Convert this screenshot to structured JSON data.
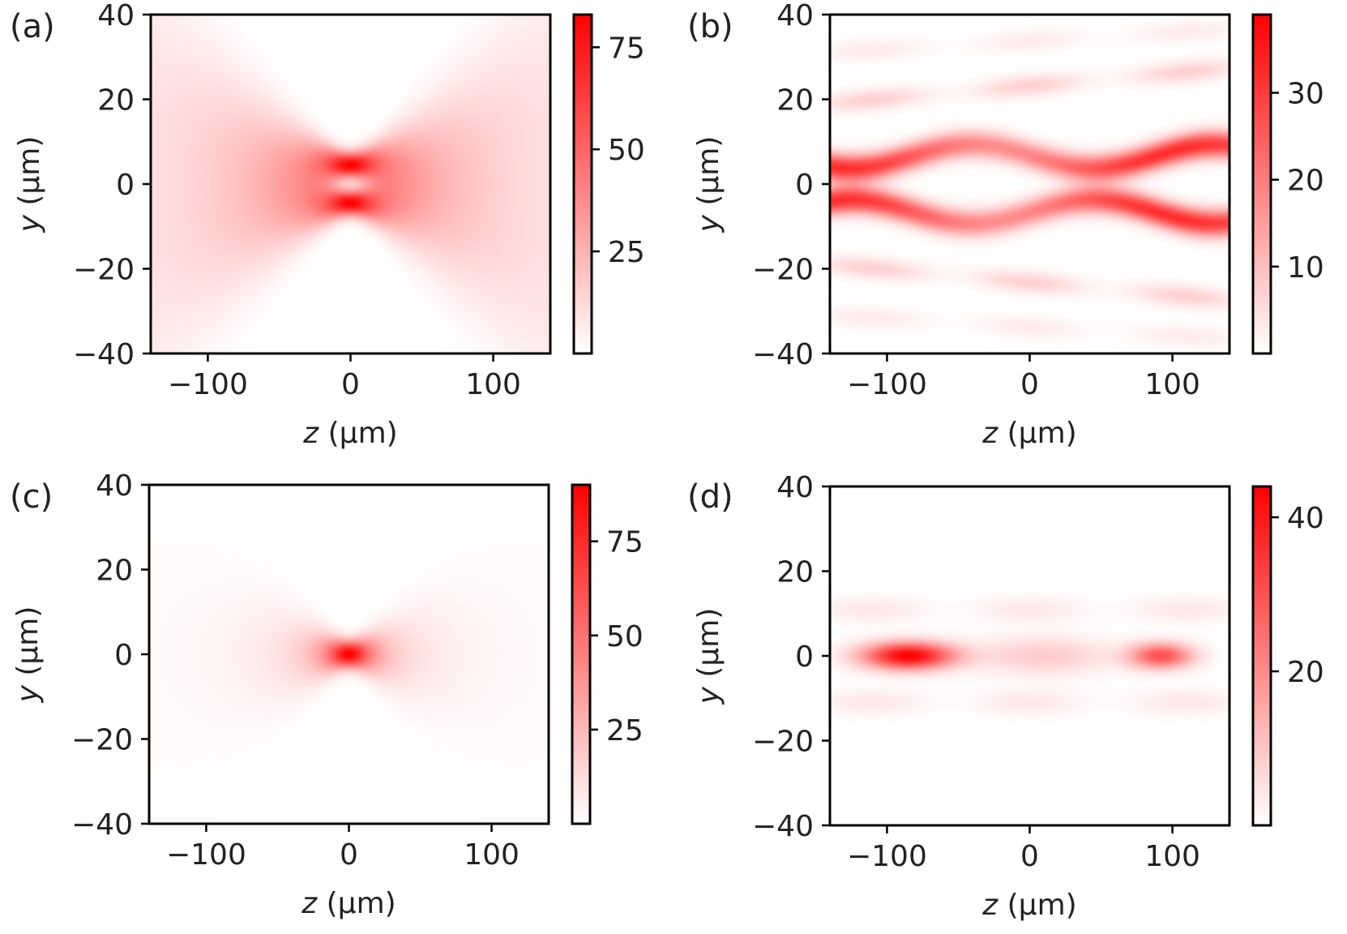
{
  "chart_data": [
    {
      "type": "heatmap",
      "panel": "(a)",
      "xlabel_var": "z",
      "xlabel_unit": " (μm)",
      "ylabel_var": "y",
      "ylabel_unit": " (μm)",
      "xlim": [
        -140,
        140
      ],
      "ylim": [
        -40,
        40
      ],
      "xticks": [
        -100,
        0,
        100
      ],
      "xtick_labels": [
        "−100",
        "0",
        "100"
      ],
      "yticks": [
        -40,
        -20,
        0,
        20,
        40
      ],
      "ytick_labels": [
        "−40",
        "−20",
        "0",
        "20",
        "40"
      ],
      "colorbar": {
        "min": 0,
        "max": 83,
        "ticks": [
          25,
          50,
          75
        ],
        "tick_labels": [
          "25",
          "50",
          "75"
        ]
      },
      "colormap": [
        "#ffffff",
        "#ff0000"
      ],
      "features": [
        {
          "kind": "hourglass",
          "waist_z": 0,
          "center_y": 4.5,
          "waist_width": 3.0,
          "spread": 0.07,
          "peak": 83
        },
        {
          "kind": "hourglass",
          "waist_z": 0,
          "center_y": -4.5,
          "waist_width": 3.0,
          "spread": 0.07,
          "peak": 83
        }
      ]
    },
    {
      "type": "heatmap",
      "panel": "(b)",
      "xlabel_var": "z",
      "xlabel_unit": " (μm)",
      "ylabel_var": "y",
      "ylabel_unit": " (μm)",
      "xlim": [
        -140,
        140
      ],
      "ylim": [
        -40,
        40
      ],
      "xticks": [
        -100,
        0,
        100
      ],
      "xtick_labels": [
        "−100",
        "0",
        "100"
      ],
      "yticks": [
        -40,
        -20,
        0,
        20,
        40
      ],
      "ytick_labels": [
        "−40",
        "−20",
        "0",
        "20",
        "40"
      ],
      "colorbar": {
        "min": 0,
        "max": 39,
        "ticks": [
          10,
          20,
          30
        ],
        "tick_labels": [
          "10",
          "20",
          "30"
        ]
      },
      "colormap": [
        "#ffffff",
        "#ff0000"
      ],
      "features": [
        {
          "kind": "wave",
          "center_y": 6.5,
          "amplitude": 2.8,
          "period": 170,
          "phase": 40,
          "width": 3.2,
          "peak": 32
        },
        {
          "kind": "wave",
          "center_y": -6.5,
          "amplitude": -2.8,
          "period": 170,
          "phase": 40,
          "width": 3.2,
          "peak": 32
        },
        {
          "kind": "band",
          "center_y": 19,
          "slope": 0.03,
          "width": 2.5,
          "peak": 7
        },
        {
          "kind": "band",
          "center_y": -19,
          "slope": -0.03,
          "width": 2.5,
          "peak": 7
        },
        {
          "kind": "band",
          "center_y": 31,
          "slope": 0.02,
          "width": 2.5,
          "peak": 3
        },
        {
          "kind": "band",
          "center_y": -31,
          "slope": -0.02,
          "width": 2.5,
          "peak": 3
        }
      ]
    },
    {
      "type": "heatmap",
      "panel": "(c)",
      "xlabel_var": "z",
      "xlabel_unit": " (μm)",
      "ylabel_var": "y",
      "ylabel_unit": " (μm)",
      "xlim": [
        -140,
        140
      ],
      "ylim": [
        -40,
        40
      ],
      "xticks": [
        -100,
        0,
        100
      ],
      "xtick_labels": [
        "−100",
        "0",
        "100"
      ],
      "yticks": [
        -40,
        -20,
        0,
        20,
        40
      ],
      "ytick_labels": [
        "−40",
        "−20",
        "0",
        "20",
        "40"
      ],
      "colorbar": {
        "min": 0,
        "max": 90,
        "ticks": [
          25,
          50,
          75
        ],
        "tick_labels": [
          "25",
          "50",
          "75"
        ]
      },
      "colormap": [
        "#ffffff",
        "#ff0000"
      ],
      "features": [
        {
          "kind": "focus",
          "center_z": 0,
          "center_y": 0,
          "waist_width": 3.2,
          "spread": 0.08,
          "peak": 90
        }
      ]
    },
    {
      "type": "heatmap",
      "panel": "(d)",
      "xlabel_var": "z",
      "xlabel_unit": " (μm)",
      "ylabel_var": "y",
      "ylabel_unit": " (μm)",
      "xlim": [
        -140,
        140
      ],
      "ylim": [
        -40,
        40
      ],
      "xticks": [
        -100,
        0,
        100
      ],
      "xtick_labels": [
        "−100",
        "0",
        "100"
      ],
      "yticks": [
        -40,
        -20,
        0,
        20,
        40
      ],
      "ytick_labels": [
        "−40",
        "−20",
        "0",
        "20",
        "40"
      ],
      "colorbar": {
        "min": 0,
        "max": 44,
        "ticks": [
          20,
          40
        ],
        "tick_labels": [
          "20",
          "40"
        ]
      },
      "colormap": [
        "#ffffff",
        "#ff0000"
      ],
      "features": [
        {
          "kind": "spot",
          "center_z": -85,
          "center_y": 0,
          "sz": 32,
          "sy": 3.2,
          "peak": 44
        },
        {
          "kind": "spot",
          "center_z": 92,
          "center_y": 0,
          "sz": 22,
          "sy": 3.0,
          "peak": 30
        },
        {
          "kind": "spot",
          "center_z": 10,
          "center_y": 0,
          "sz": 45,
          "sy": 4.5,
          "peak": 9
        },
        {
          "kind": "band",
          "center_y": 11,
          "slope": 0.0,
          "width": 3.0,
          "peak": 4
        },
        {
          "kind": "band",
          "center_y": -11,
          "slope": 0.0,
          "width": 3.0,
          "peak": 4
        }
      ]
    }
  ]
}
